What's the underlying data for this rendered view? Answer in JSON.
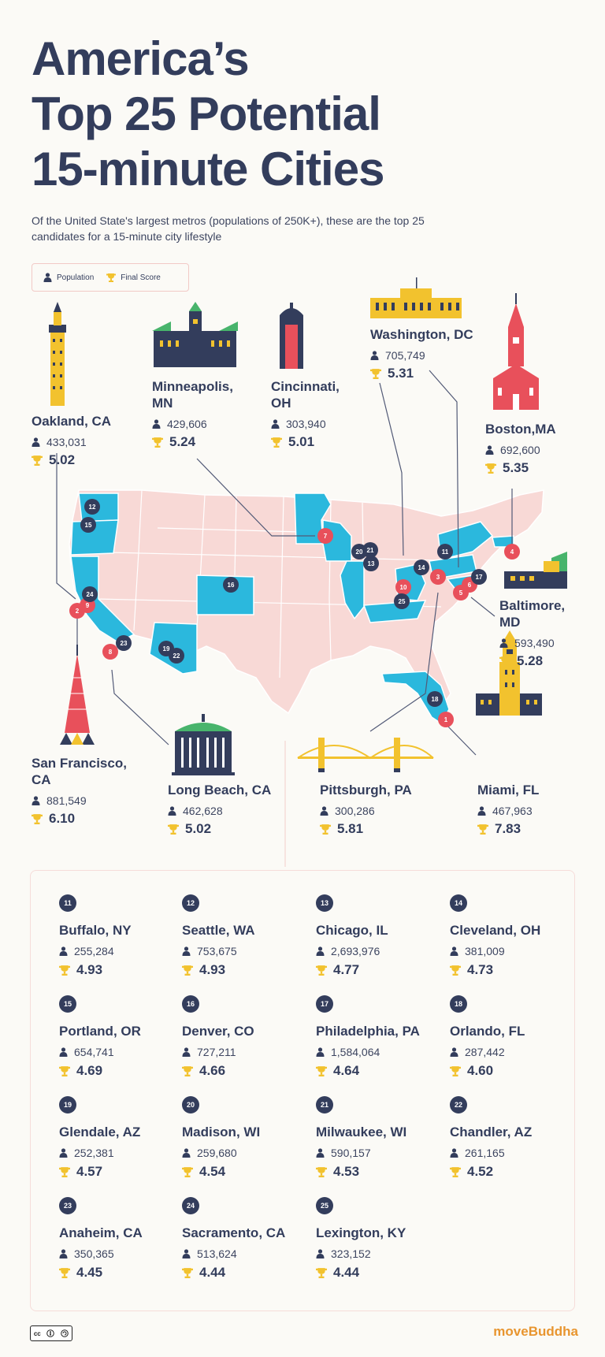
{
  "header": {
    "title_lines": [
      "America’s",
      "Top 25 Potential",
      "15-minute Cities"
    ],
    "subtitle": "Of the United State's largest metros (populations of 250K+), these are the top 25 candidates for a 15-minute city lifestyle"
  },
  "legend": {
    "population_label": "Population",
    "score_label": "Final Score"
  },
  "colors": {
    "navy": "#333d5c",
    "red": "#e8505b",
    "blue": "#2bb8dd",
    "pink": "#f8d9d6",
    "gold": "#f2c22e"
  },
  "top10": [
    {
      "rank": "1",
      "city": "Miami, FL",
      "population": "467,963",
      "score": "7.83"
    },
    {
      "rank": "2",
      "city": "San Francisco, CA",
      "population": "881,549",
      "score": "6.10"
    },
    {
      "rank": "3",
      "city": "Pittsburgh, PA",
      "population": "300,286",
      "score": "5.81"
    },
    {
      "rank": "4",
      "city": "Boston,MA",
      "population": "692,600",
      "score": "5.35"
    },
    {
      "rank": "5",
      "city": "Washington, DC",
      "population": "705,749",
      "score": "5.31"
    },
    {
      "rank": "6",
      "city": "Baltimore, MD",
      "population": "593,490",
      "score": "5.28"
    },
    {
      "rank": "7",
      "city": "Minneapolis, MN",
      "population": "429,606",
      "score": "5.24"
    },
    {
      "rank": "8",
      "city": "Long Beach, CA",
      "population": "462,628",
      "score": "5.02"
    },
    {
      "rank": "9",
      "city": "Oakland, CA",
      "population": "433,031",
      "score": "5.02"
    },
    {
      "rank": "10",
      "city": "Cincinnati, OH",
      "population": "303,940",
      "score": "5.01"
    }
  ],
  "rest": [
    {
      "rank": "11",
      "city": "Buffalo, NY",
      "population": "255,284",
      "score": "4.93"
    },
    {
      "rank": "12",
      "city": "Seattle, WA",
      "population": "753,675",
      "score": "4.93"
    },
    {
      "rank": "13",
      "city": "Chicago, IL",
      "population": "2,693,976",
      "score": "4.77"
    },
    {
      "rank": "14",
      "city": "Cleveland, OH",
      "population": "381,009",
      "score": "4.73"
    },
    {
      "rank": "15",
      "city": "Portland, OR",
      "population": "654,741",
      "score": "4.69"
    },
    {
      "rank": "16",
      "city": "Denver, CO",
      "population": "727,211",
      "score": "4.66"
    },
    {
      "rank": "17",
      "city": "Philadelphia, PA",
      "population": "1,584,064",
      "score": "4.64"
    },
    {
      "rank": "18",
      "city": "Orlando, FL",
      "population": "287,442",
      "score": "4.60"
    },
    {
      "rank": "19",
      "city": "Glendale, AZ",
      "population": "252,381",
      "score": "4.57"
    },
    {
      "rank": "20",
      "city": "Madison, WI",
      "population": "259,680",
      "score": "4.54"
    },
    {
      "rank": "21",
      "city": "Milwaukee, WI",
      "population": "590,157",
      "score": "4.53"
    },
    {
      "rank": "22",
      "city": "Chandler, AZ",
      "population": "261,165",
      "score": "4.52"
    },
    {
      "rank": "23",
      "city": "Anaheim, CA",
      "population": "350,365",
      "score": "4.45"
    },
    {
      "rank": "24",
      "city": "Sacramento, CA",
      "population": "513,624",
      "score": "4.44"
    },
    {
      "rank": "25",
      "city": "Lexington, KY",
      "population": "323,152",
      "score": "4.44"
    }
  ],
  "footer": {
    "license": "cc",
    "brand_a": "move",
    "brand_b": "Buddha"
  }
}
